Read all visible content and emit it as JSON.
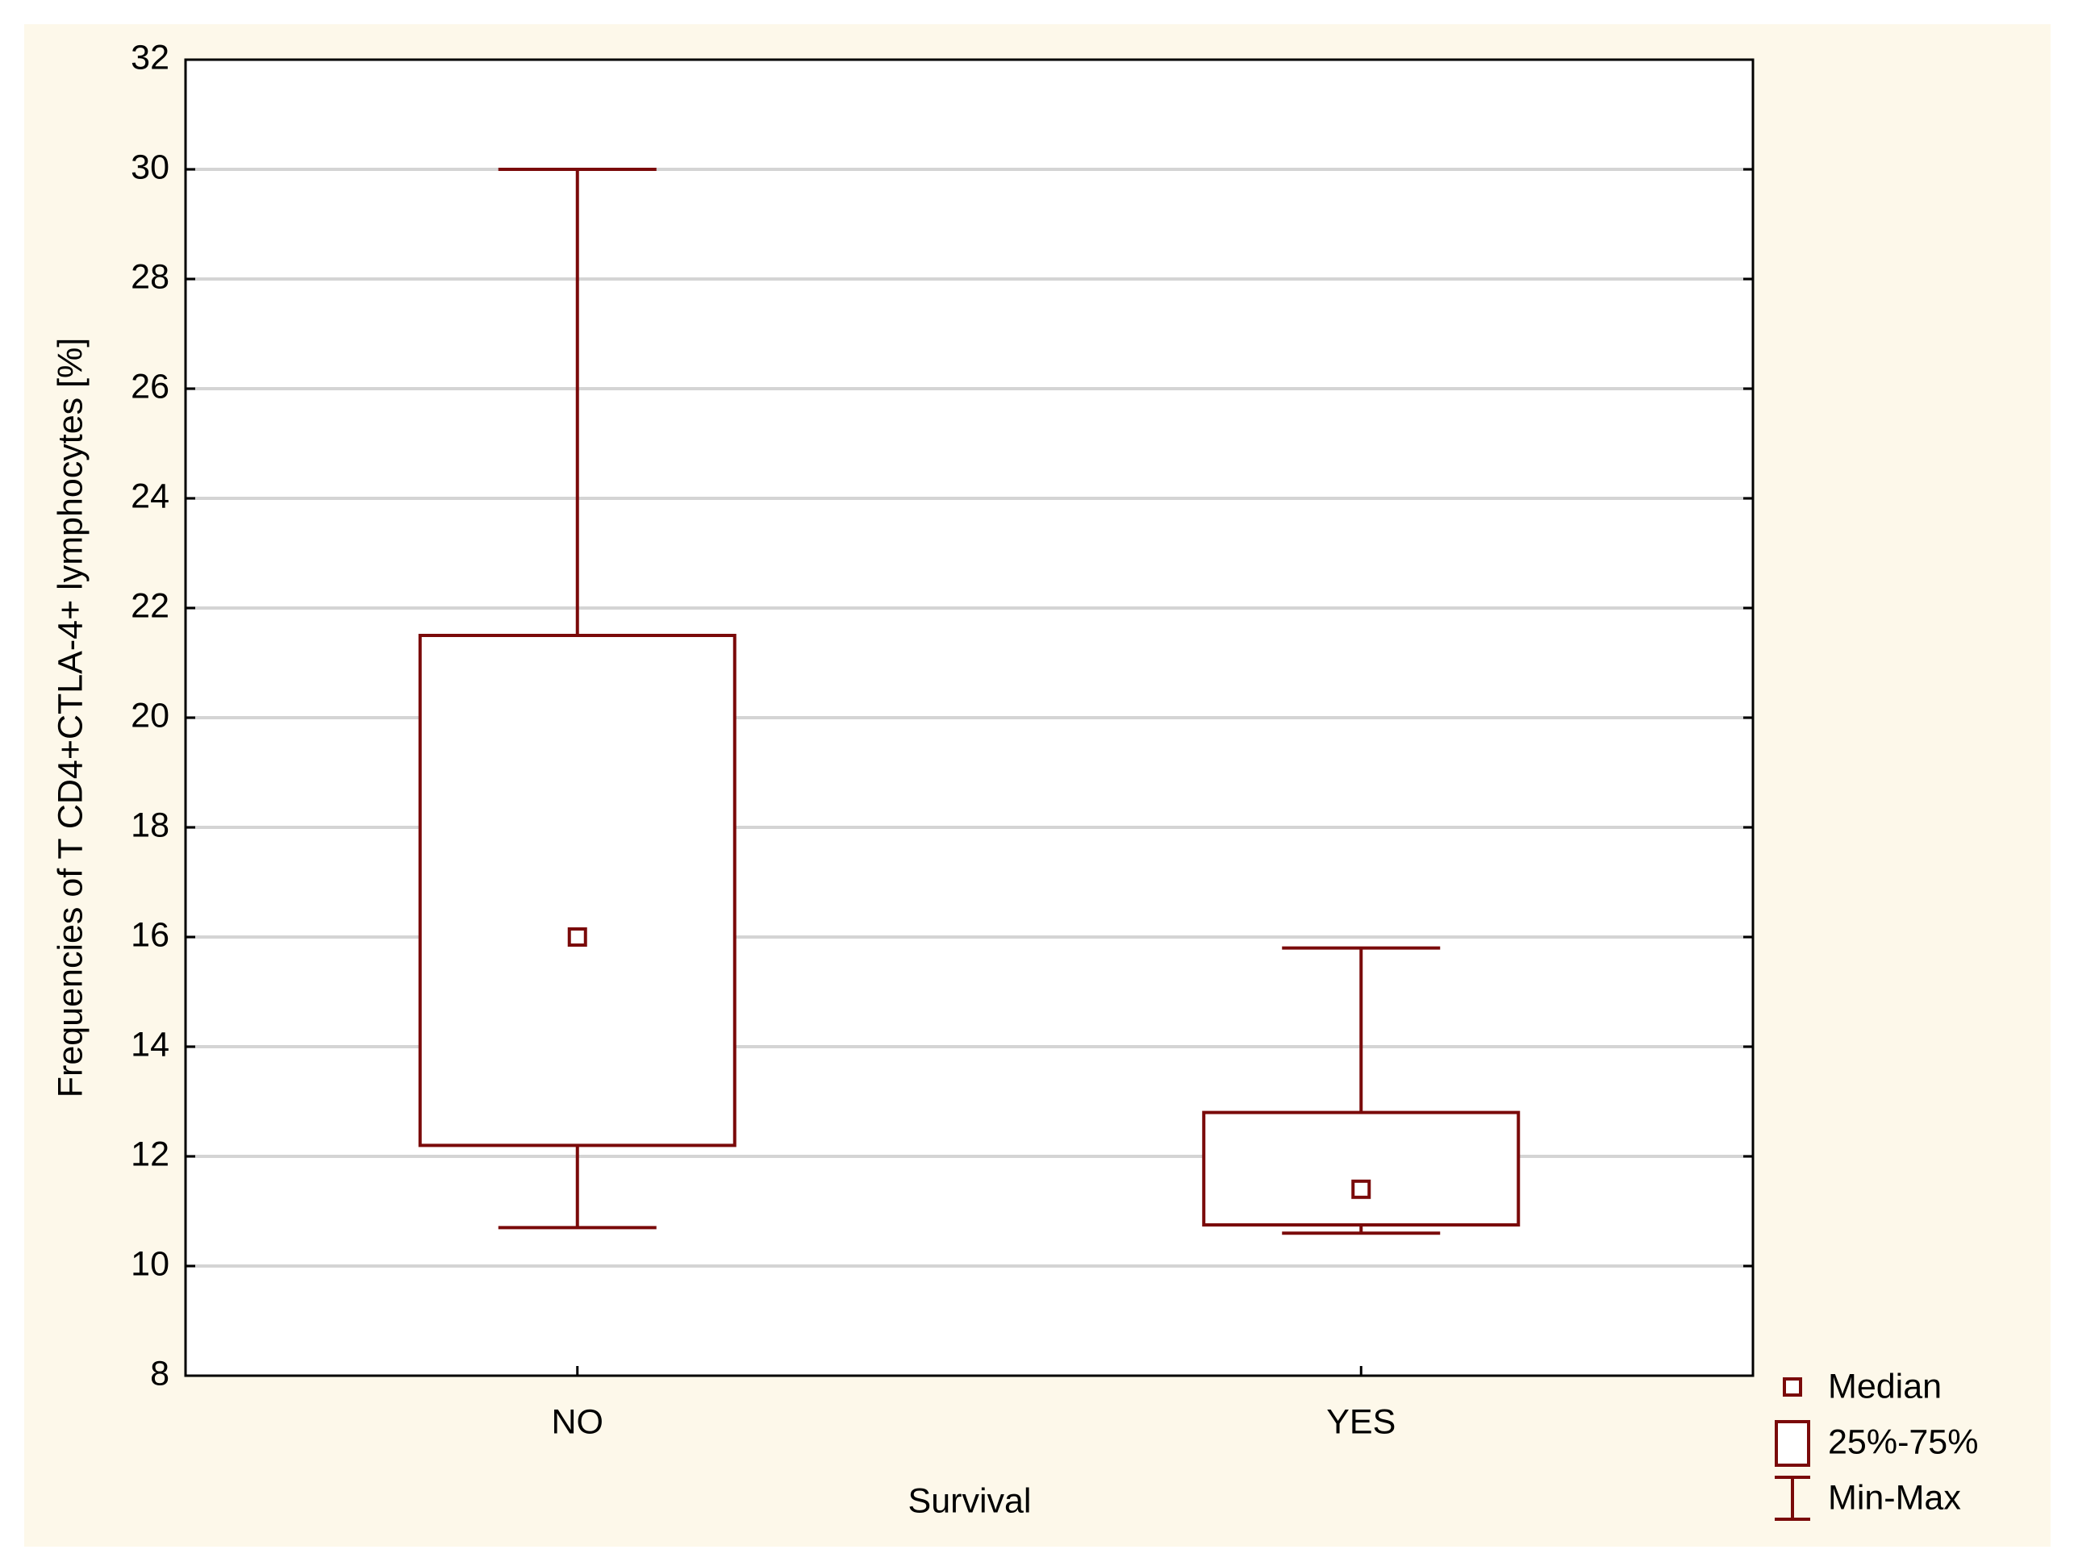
{
  "chart_data": {
    "type": "box",
    "x_label": "Survival",
    "y_label": "Frequencies of T CD4+CTLA-4+ lymphocytes [%]",
    "categories": [
      "NO",
      "YES"
    ],
    "boxes": [
      {
        "min": 10.7,
        "q1": 12.2,
        "median": 16.0,
        "q3": 21.5,
        "max": 30.0
      },
      {
        "min": 10.6,
        "q1": 10.75,
        "median": 11.4,
        "q3": 12.8,
        "max": 15.8
      }
    ],
    "color": "#7a0a0a",
    "ylim": [
      8,
      32
    ],
    "yticks": [
      8,
      10,
      12,
      14,
      16,
      18,
      20,
      22,
      24,
      26,
      28,
      30,
      32
    ],
    "grid": true,
    "legend": [
      "Median",
      "25%-75%",
      "Min-Max"
    ]
  }
}
